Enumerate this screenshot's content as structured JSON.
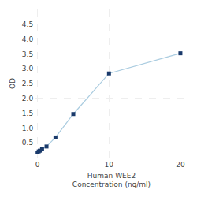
{
  "chart_data": {
    "type": "line",
    "xlabel": "Human WEE2\nConcentration (ng/ml)",
    "ylabel": "OD",
    "x": [
      0,
      0.156,
      0.313,
      0.625,
      1.25,
      2.5,
      5,
      10,
      20
    ],
    "values": [
      0.174,
      0.21,
      0.235,
      0.282,
      0.375,
      0.68,
      1.47,
      2.84,
      3.52
    ],
    "color": "#aacce0",
    "colors": [
      "#1a3a6b",
      "#1a3a6b",
      "#1a3a6b",
      "#1a3a6b",
      "#1a3a6b",
      "#1a3a6b",
      "#1a3a6b",
      "#1a3a6b",
      "#1a3a6b"
    ],
    "marker": "square",
    "xlim": [
      -0.3,
      21
    ],
    "xticks": [
      0,
      10,
      20
    ],
    "ylim": [
      0,
      5.0
    ],
    "yticks": [
      0.5,
      {
        "value": 1.0,
        "label": "1.0"
      },
      1.5,
      {
        "value": 2.0,
        "label": "2.0"
      },
      2.5,
      {
        "value": 3.0,
        "label": "3.0"
      },
      3.5,
      {
        "value": 4.0,
        "label": "4.0"
      },
      4.5
    ],
    "grid": true
  }
}
